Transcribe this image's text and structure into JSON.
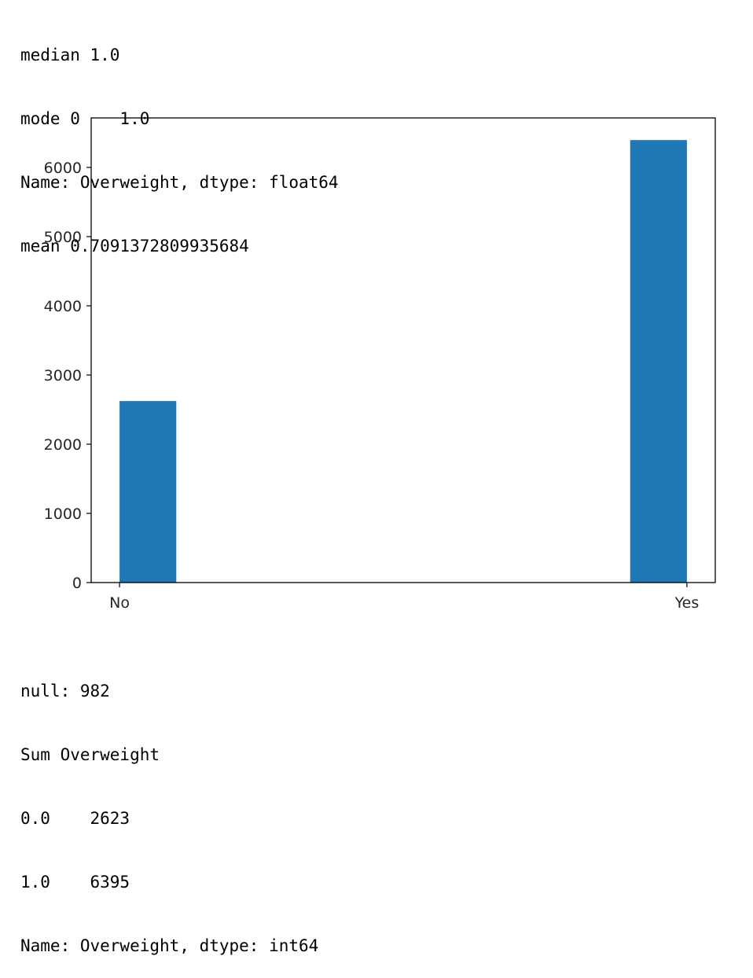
{
  "top_output": [
    "median 1.0",
    "mode 0    1.0",
    "Name: Overweight, dtype: float64",
    "mean 0.7091372809935684"
  ],
  "bottom_output": [
    "null: 982",
    "Sum Overweight",
    "0.0    2623",
    "1.0    6395",
    "Name: Overweight, dtype: int64"
  ],
  "chart_data": {
    "type": "bar",
    "title": "",
    "xlabel": "",
    "ylabel": "",
    "categories": [
      "No",
      "Yes"
    ],
    "values": [
      2623,
      6395
    ],
    "xlim": [
      -0.05,
      1.05
    ],
    "bin_width": 0.1,
    "ylim": [
      0,
      6715
    ],
    "yticks": [
      0,
      1000,
      2000,
      3000,
      4000,
      5000,
      6000
    ],
    "ytick_labels": [
      "0",
      "1000",
      "2000",
      "3000",
      "4000",
      "5000",
      "6000"
    ],
    "grid": false,
    "bar_color": "#1f77b4"
  }
}
